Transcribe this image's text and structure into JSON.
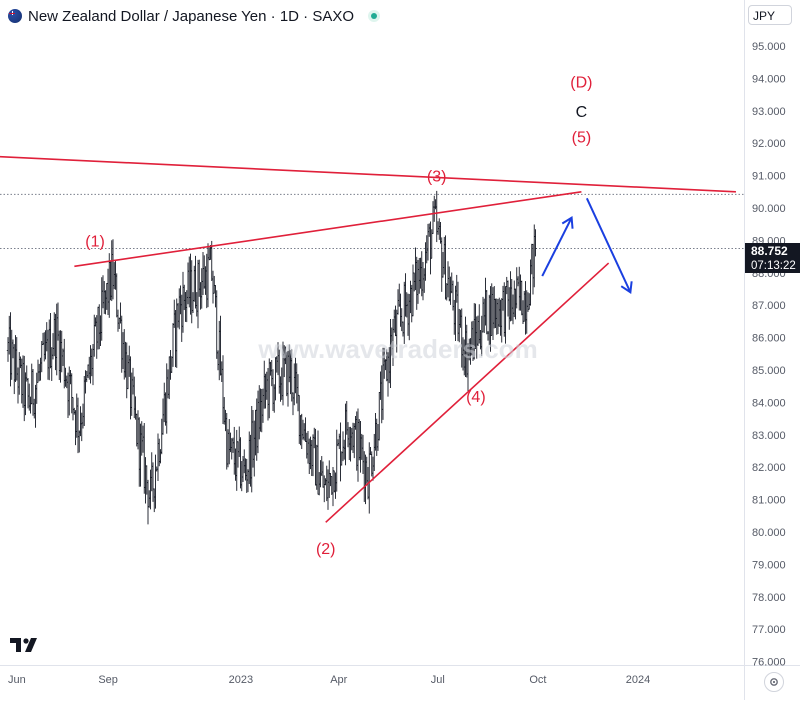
{
  "header": {
    "title": "New Zealand Dollar / Japanese Yen · 1D · SAXO"
  },
  "currency": "JPY",
  "last_price": {
    "value": "88.752",
    "countdown": "07:13:22"
  },
  "watermark": "www.wavetraders.com",
  "icons": {
    "flag": "nzd-flag-icon",
    "status": "market-status-icon",
    "logo": "tradingview-logo-icon",
    "settings": "gear-icon"
  },
  "colors": {
    "wave_label": "#e0203a",
    "trendline": "#e0203a",
    "arrow": "#1a3fe0",
    "bars": "#131722",
    "axis_text": "#555a66"
  },
  "chart_data": {
    "type": "ohlc",
    "title": "New Zealand Dollar / Japanese Yen · 1D · SAXO",
    "ylim": [
      76,
      96
    ],
    "y_ticks": [
      "95.000",
      "94.000",
      "93.000",
      "92.000",
      "91.000",
      "90.000",
      "89.000",
      "88.000",
      "87.000",
      "86.000",
      "85.000",
      "84.000",
      "83.000",
      "82.000",
      "81.000",
      "80.000",
      "79.000",
      "78.000",
      "77.000",
      "76.000"
    ],
    "x_ticks": [
      "Jun",
      "Sep",
      "2023",
      "Apr",
      "Jul",
      "Oct",
      "2024"
    ],
    "price_path": [
      {
        "date": "2022-06-01",
        "price": 85.6
      },
      {
        "date": "2022-06-20",
        "price": 84.0
      },
      {
        "date": "2022-07-15",
        "price": 86.2
      },
      {
        "date": "2022-08-05",
        "price": 83.3
      },
      {
        "date": "2022-08-20",
        "price": 85.8
      },
      {
        "date": "2022-09-05",
        "price": 88.0
      },
      {
        "date": "2022-09-25",
        "price": 83.5
      },
      {
        "date": "2022-10-10",
        "price": 81.0
      },
      {
        "date": "2022-11-05",
        "price": 87.0
      },
      {
        "date": "2022-12-05",
        "price": 88.1
      },
      {
        "date": "2022-12-20",
        "price": 82.5
      },
      {
        "date": "2023-01-05",
        "price": 81.8
      },
      {
        "date": "2023-01-25",
        "price": 84.5
      },
      {
        "date": "2023-02-15",
        "price": 85.0
      },
      {
        "date": "2023-03-01",
        "price": 83.0
      },
      {
        "date": "2023-03-20",
        "price": 81.2
      },
      {
        "date": "2023-04-10",
        "price": 83.5
      },
      {
        "date": "2023-04-28",
        "price": 81.8
      },
      {
        "date": "2023-05-20",
        "price": 86.0
      },
      {
        "date": "2023-06-15",
        "price": 88.0
      },
      {
        "date": "2023-06-28",
        "price": 89.5
      },
      {
        "date": "2023-07-15",
        "price": 87.0
      },
      {
        "date": "2023-07-28",
        "price": 85.5
      },
      {
        "date": "2023-08-15",
        "price": 86.8
      },
      {
        "date": "2023-09-05",
        "price": 87.0
      },
      {
        "date": "2023-09-20",
        "price": 87.3
      },
      {
        "date": "2023-09-29",
        "price": 88.75
      }
    ],
    "horizontal_levels": [
      90.42,
      88.75
    ],
    "trendlines": [
      {
        "name": "upper-resistance",
        "from": {
          "date": "2022-05-15",
          "price": 91.6
        },
        "to": {
          "date": "2024-03-31",
          "price": 90.5
        }
      },
      {
        "name": "wave-b-line",
        "from": {
          "date": "2022-08-01",
          "price": 88.2
        },
        "to": {
          "date": "2023-11-10",
          "price": 90.5
        }
      },
      {
        "name": "lower-support",
        "from": {
          "date": "2023-03-20",
          "price": 80.3
        },
        "to": {
          "date": "2023-12-05",
          "price": 88.3
        }
      }
    ],
    "wave_labels": [
      {
        "text": "(1)",
        "date": "2022-08-20",
        "price": 89.0,
        "color": "#e0203a"
      },
      {
        "text": "(2)",
        "date": "2023-03-20",
        "price": 79.5,
        "color": "#e0203a"
      },
      {
        "text": "(3)",
        "date": "2023-06-30",
        "price": 91.0,
        "color": "#e0203a"
      },
      {
        "text": "(4)",
        "date": "2023-08-05",
        "price": 84.2,
        "color": "#e0203a"
      },
      {
        "text": "(5)",
        "date": "2023-11-10",
        "price": 92.2,
        "color": "#e0203a"
      },
      {
        "text": "C",
        "date": "2023-11-10",
        "price": 93.0,
        "color": "#131722"
      },
      {
        "text": "(D)",
        "date": "2023-11-10",
        "price": 93.9,
        "color": "#e0203a"
      }
    ],
    "arrows": [
      {
        "from": {
          "date": "2023-10-05",
          "price": 87.9
        },
        "to": {
          "date": "2023-11-01",
          "price": 89.7
        }
      },
      {
        "from": {
          "date": "2023-11-15",
          "price": 90.3
        },
        "to": {
          "date": "2023-12-25",
          "price": 87.4
        }
      }
    ],
    "grid": false
  }
}
